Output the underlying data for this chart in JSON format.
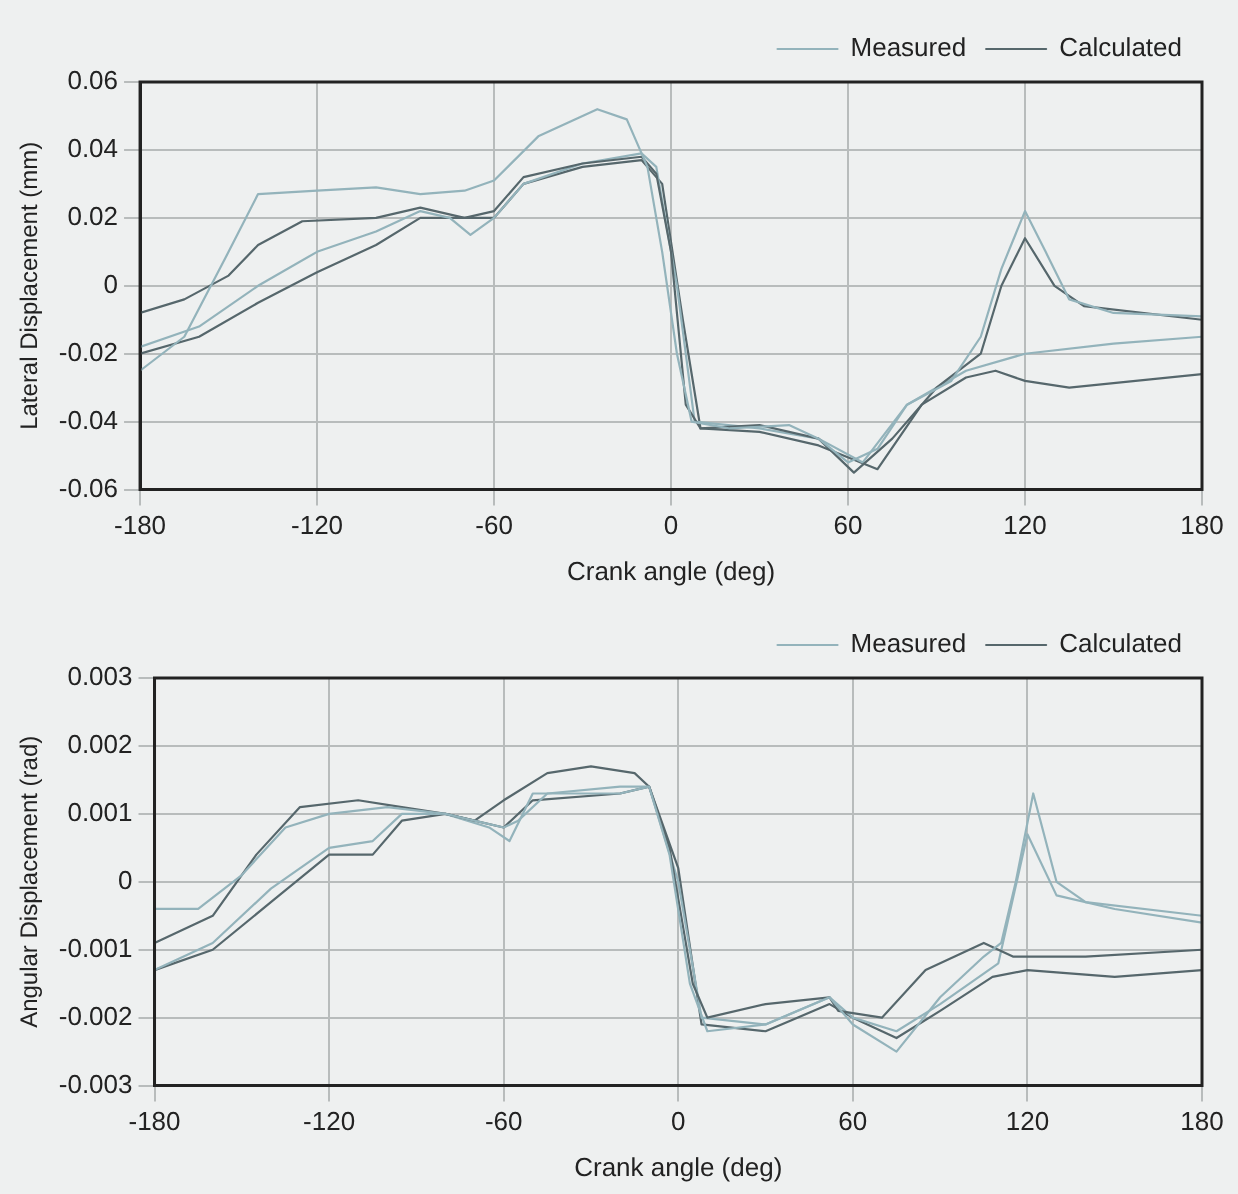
{
  "chart_data": [
    {
      "type": "line",
      "xlabel": "Crank angle (deg)",
      "ylabel": "Lateral Displacement (mm)",
      "xlim": [
        -180,
        180
      ],
      "xticks": [
        -180,
        -120,
        -60,
        0,
        60,
        120,
        180
      ],
      "ylim": [
        -0.06,
        0.06
      ],
      "yticks": [
        -0.06,
        -0.04,
        -0.02,
        0,
        0.02,
        0.04,
        0.06
      ],
      "grid": true,
      "legend": "top right",
      "marker": "none",
      "line_style": "solid",
      "series": [
        {
          "name": "Measured",
          "color": "#93b3bb",
          "x": [
            -180,
            -165,
            -150,
            -140,
            -120,
            -100,
            -85,
            -70,
            -60,
            -45,
            -25,
            -15,
            -8,
            -3,
            2,
            7,
            20,
            40,
            50,
            60,
            70,
            80,
            95,
            105,
            112,
            120,
            127,
            135,
            150,
            180
          ],
          "values": [
            -0.025,
            -0.015,
            0.01,
            0.027,
            0.028,
            0.029,
            0.027,
            0.028,
            0.031,
            0.044,
            0.052,
            0.049,
            0.035,
            0.01,
            -0.02,
            -0.04,
            -0.042,
            -0.041,
            -0.045,
            -0.052,
            -0.048,
            -0.035,
            -0.028,
            -0.015,
            0.005,
            0.022,
            0.01,
            -0.004,
            -0.008,
            -0.009
          ]
        },
        {
          "name": "Calculated",
          "color": "#56676c",
          "x": [
            -180,
            -165,
            -150,
            -140,
            -125,
            -100,
            -85,
            -70,
            -60,
            -50,
            -30,
            -10,
            -5,
            0,
            5,
            10,
            30,
            50,
            62,
            75,
            90,
            105,
            112,
            120,
            130,
            140,
            180
          ],
          "values": [
            -0.008,
            -0.004,
            0.003,
            0.012,
            0.019,
            0.02,
            0.023,
            0.02,
            0.022,
            0.032,
            0.036,
            0.038,
            0.033,
            0.01,
            -0.035,
            -0.042,
            -0.041,
            -0.045,
            -0.055,
            -0.045,
            -0.03,
            -0.02,
            0,
            0.014,
            0,
            -0.006,
            -0.01
          ]
        },
        {
          "color": "#93b3bb",
          "x": [
            -180,
            -160,
            -140,
            -120,
            -100,
            -85,
            -75,
            -68,
            -60,
            -50,
            -30,
            -10,
            -5,
            2,
            8,
            30,
            50,
            65,
            80,
            100,
            120,
            150,
            180
          ],
          "values": [
            -0.018,
            -0.012,
            0,
            0.01,
            0.016,
            0.022,
            0.02,
            0.015,
            0.02,
            0.03,
            0.036,
            0.039,
            0.035,
            0,
            -0.04,
            -0.042,
            -0.045,
            -0.052,
            -0.035,
            -0.025,
            -0.02,
            -0.017,
            -0.015
          ]
        },
        {
          "color": "#56676c",
          "x": [
            -180,
            -160,
            -140,
            -120,
            -100,
            -85,
            -60,
            -50,
            -30,
            -10,
            -3,
            4,
            10,
            30,
            50,
            70,
            85,
            100,
            110,
            120,
            135,
            180
          ],
          "values": [
            -0.02,
            -0.015,
            -0.005,
            0.004,
            0.012,
            0.02,
            0.02,
            0.03,
            0.035,
            0.037,
            0.03,
            -0.01,
            -0.042,
            -0.043,
            -0.047,
            -0.054,
            -0.035,
            -0.027,
            -0.025,
            -0.028,
            -0.03,
            -0.026
          ]
        }
      ]
    },
    {
      "type": "line",
      "xlabel": "Crank angle (deg)",
      "ylabel": "Angular Displacement (rad)",
      "xlim": [
        -180,
        180
      ],
      "xticks": [
        -180,
        -120,
        -60,
        0,
        60,
        120,
        180
      ],
      "ylim": [
        -0.003,
        0.003
      ],
      "yticks": [
        -0.003,
        -0.002,
        -0.001,
        0,
        0.001,
        0.002,
        0.003
      ],
      "grid": true,
      "legend": "top right",
      "marker": "none",
      "line_style": "solid",
      "series": [
        {
          "name": "Measured",
          "color": "#93b3bb",
          "x": [
            -180,
            -165,
            -150,
            -135,
            -120,
            -100,
            -80,
            -60,
            -55,
            -45,
            -20,
            -10,
            -3,
            4,
            10,
            30,
            52,
            60,
            75,
            90,
            105,
            111,
            116,
            122,
            130,
            140,
            180
          ],
          "values": [
            -0.0004,
            -0.0004,
            0.0001,
            0.0008,
            0.001,
            0.0011,
            0.001,
            0.0008,
            0.0009,
            0.0013,
            0.0014,
            0.0014,
            0.0004,
            -0.0015,
            -0.0022,
            -0.0021,
            -0.0017,
            -0.0021,
            -0.0025,
            -0.0017,
            -0.0011,
            -0.0009,
            0,
            0.0013,
            0,
            -0.0003,
            -0.0005
          ]
        },
        {
          "name": "Calculated",
          "color": "#56676c",
          "x": [
            -180,
            -160,
            -145,
            -130,
            -110,
            -95,
            -80,
            -70,
            -60,
            -45,
            -30,
            -15,
            -10,
            -3,
            5,
            10,
            30,
            52,
            55,
            70,
            85,
            105,
            115,
            140,
            180
          ],
          "values": [
            -0.0009,
            -0.0005,
            0.0004,
            0.0011,
            0.0012,
            0.0011,
            0.001,
            0.0009,
            0.0012,
            0.0016,
            0.0017,
            0.0016,
            0.0014,
            0.0005,
            -0.0015,
            -0.002,
            -0.0018,
            -0.0017,
            -0.0019,
            -0.002,
            -0.0013,
            -0.0009,
            -0.0011,
            -0.0011,
            -0.001
          ]
        },
        {
          "color": "#93b3bb",
          "x": [
            -180,
            -160,
            -140,
            -120,
            -105,
            -95,
            -80,
            -65,
            -58,
            -50,
            -20,
            -10,
            0,
            8,
            30,
            52,
            60,
            75,
            90,
            110,
            120,
            130,
            150,
            180
          ],
          "values": [
            -0.0013,
            -0.0009,
            -0.0001,
            0.0005,
            0.0006,
            0.001,
            0.001,
            0.0008,
            0.0006,
            0.0013,
            0.0013,
            0.0014,
            0,
            -0.002,
            -0.0021,
            -0.0017,
            -0.002,
            -0.0022,
            -0.0018,
            -0.0012,
            0.0007,
            -0.0002,
            -0.0004,
            -0.0006
          ]
        },
        {
          "color": "#56676c",
          "x": [
            -180,
            -160,
            -140,
            -120,
            -105,
            -95,
            -80,
            -60,
            -50,
            -20,
            -10,
            0,
            8,
            30,
            52,
            60,
            75,
            90,
            108,
            120,
            150,
            180
          ],
          "values": [
            -0.0013,
            -0.001,
            -0.0003,
            0.0004,
            0.0004,
            0.0009,
            0.001,
            0.0008,
            0.0012,
            0.0013,
            0.0014,
            0.0002,
            -0.0021,
            -0.0022,
            -0.0018,
            -0.002,
            -0.0023,
            -0.0019,
            -0.0014,
            -0.0013,
            -0.0014,
            -0.0013
          ]
        }
      ]
    }
  ]
}
